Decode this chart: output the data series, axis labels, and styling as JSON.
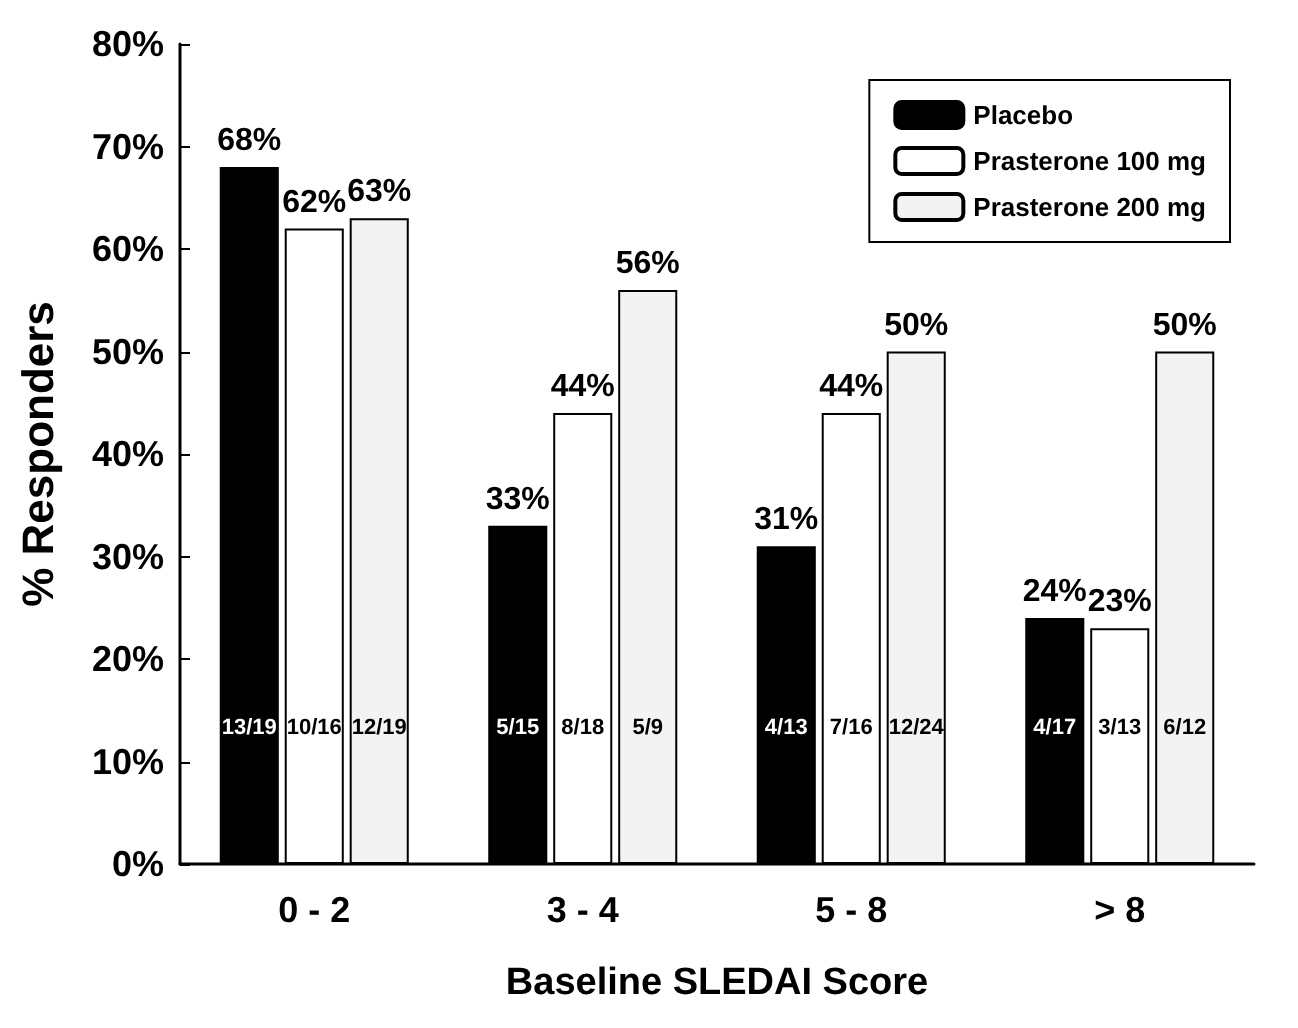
{
  "chart_data": {
    "type": "bar",
    "xlabel": "Baseline SLEDAI Score",
    "ylabel": "% Responders",
    "categories": [
      "0 - 2",
      "3 - 4",
      "5 - 8",
      "> 8"
    ],
    "series": [
      {
        "name": "Placebo",
        "color": "#000000",
        "values": [
          68,
          33,
          31,
          24
        ],
        "value_labels": [
          "68%",
          "33%",
          "31%",
          "24%"
        ]
      },
      {
        "name": "Prasterone 100 mg",
        "color": "#ffffff",
        "values": [
          62,
          44,
          44,
          23
        ],
        "value_labels": [
          "62%",
          "44%",
          "44%",
          "23%"
        ]
      },
      {
        "name": "Prasterone 200 mg",
        "color": "#f3f3f3",
        "values": [
          63,
          56,
          50,
          50
        ],
        "value_labels": [
          "63%",
          "56%",
          "50%",
          "50%"
        ]
      }
    ],
    "ylim": [
      0,
      80
    ],
    "yticks": [
      {
        "value": 0,
        "label": "0%"
      },
      {
        "value": 10,
        "label": "10%"
      },
      {
        "value": 20,
        "label": "20%"
      },
      {
        "value": 30,
        "label": "30%"
      },
      {
        "value": 40,
        "label": "40%"
      },
      {
        "value": 50,
        "label": "50%"
      },
      {
        "value": 60,
        "label": "60%"
      },
      {
        "value": 70,
        "label": "70%"
      },
      {
        "value": 80,
        "label": "80%"
      }
    ],
    "grid": false,
    "legend": "top right",
    "annotations": [
      "13/19",
      "10/16",
      "12/19",
      "5/15",
      "8/18",
      "5/9",
      "4/13",
      "7/16",
      "12/24",
      "4/17",
      "3/13",
      "6/12"
    ]
  }
}
